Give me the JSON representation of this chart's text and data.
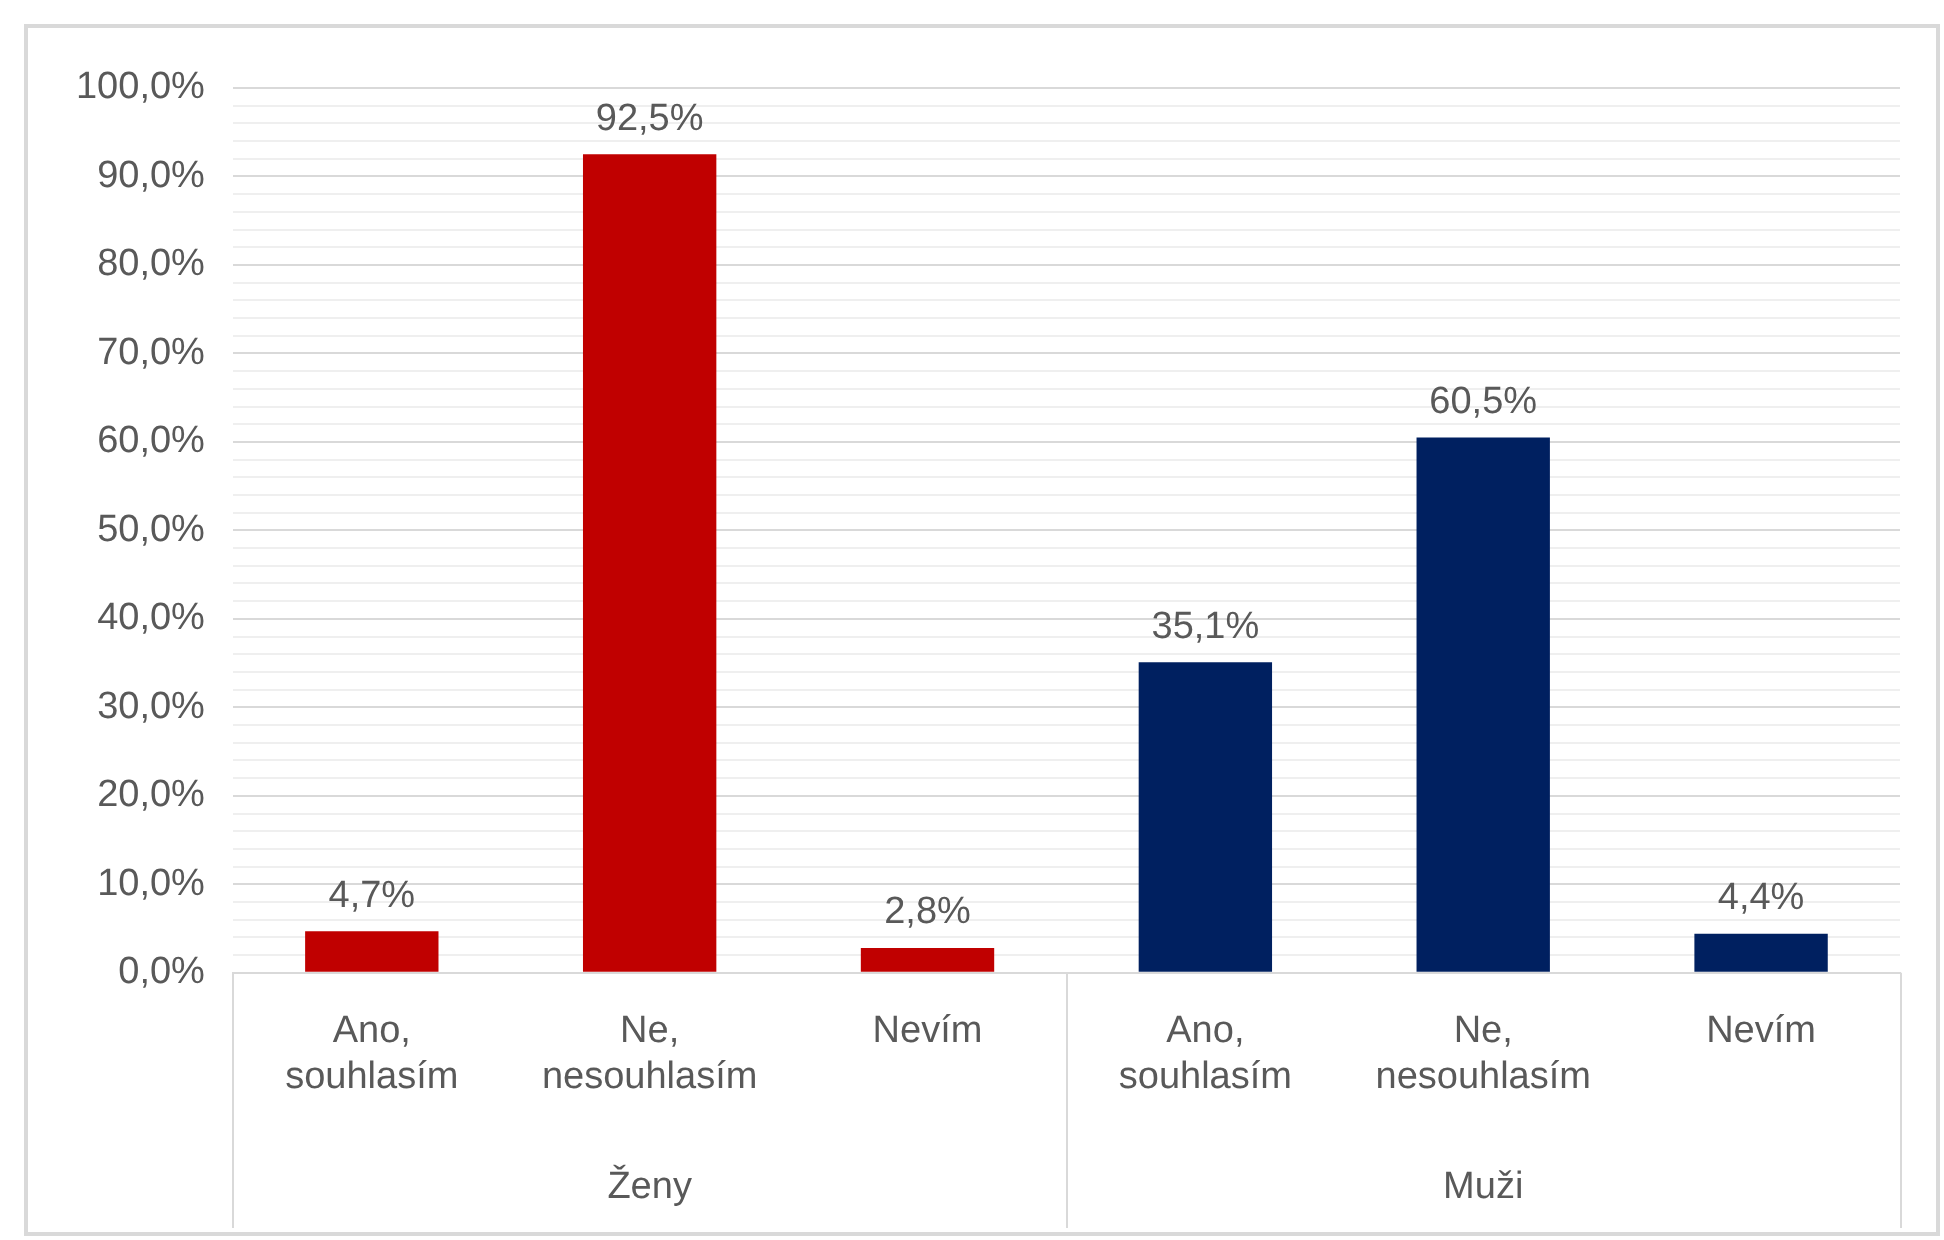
{
  "chart_data": {
    "type": "bar",
    "categories": [
      "Ano, souhlasím",
      "Ne, nesouhlasím",
      "Nevím",
      "Ano, souhlasím",
      "Ne, nesouhlasím",
      "Nevím"
    ],
    "series": [
      {
        "color": "#c00000",
        "values": [
          4.7,
          92.5,
          2.8,
          null,
          null,
          null
        ],
        "value_labels": [
          "4,7%",
          "92,5%",
          "2,8%",
          null,
          null,
          null
        ]
      },
      {
        "color": "#002060",
        "values": [
          null,
          null,
          null,
          35.1,
          60.5,
          4.4
        ],
        "value_labels": [
          null,
          null,
          null,
          "35,1%",
          "60,5%",
          "4,4%"
        ]
      }
    ],
    "ylim": [
      0,
      100
    ],
    "yticks": [
      {
        "value": 0,
        "label": "0,0%"
      },
      {
        "value": 2,
        "label": null
      },
      {
        "value": 4,
        "label": null
      },
      {
        "value": 6,
        "label": null
      },
      {
        "value": 8,
        "label": null
      },
      {
        "value": 10,
        "label": "10,0%"
      },
      {
        "value": 12,
        "label": null
      },
      {
        "value": 14,
        "label": null
      },
      {
        "value": 16,
        "label": null
      },
      {
        "value": 18,
        "label": null
      },
      {
        "value": 20,
        "label": "20,0%"
      },
      {
        "value": 22,
        "label": null
      },
      {
        "value": 24,
        "label": null
      },
      {
        "value": 26,
        "label": null
      },
      {
        "value": 28,
        "label": null
      },
      {
        "value": 30,
        "label": "30,0%"
      },
      {
        "value": 32,
        "label": null
      },
      {
        "value": 34,
        "label": null
      },
      {
        "value": 36,
        "label": null
      },
      {
        "value": 38,
        "label": null
      },
      {
        "value": 40,
        "label": "40,0%"
      },
      {
        "value": 42,
        "label": null
      },
      {
        "value": 44,
        "label": null
      },
      {
        "value": 46,
        "label": null
      },
      {
        "value": 48,
        "label": null
      },
      {
        "value": 50,
        "label": "50,0%"
      },
      {
        "value": 52,
        "label": null
      },
      {
        "value": 54,
        "label": null
      },
      {
        "value": 56,
        "label": null
      },
      {
        "value": 58,
        "label": null
      },
      {
        "value": 60,
        "label": "60,0%"
      },
      {
        "value": 62,
        "label": null
      },
      {
        "value": 64,
        "label": null
      },
      {
        "value": 66,
        "label": null
      },
      {
        "value": 68,
        "label": null
      },
      {
        "value": 70,
        "label": "70,0%"
      },
      {
        "value": 72,
        "label": null
      },
      {
        "value": 74,
        "label": null
      },
      {
        "value": 76,
        "label": null
      },
      {
        "value": 78,
        "label": null
      },
      {
        "value": 80,
        "label": "80,0%"
      },
      {
        "value": 82,
        "label": null
      },
      {
        "value": 84,
        "label": null
      },
      {
        "value": 86,
        "label": null
      },
      {
        "value": 88,
        "label": null
      },
      {
        "value": 90,
        "label": "90,0%"
      },
      {
        "value": 92,
        "label": null
      },
      {
        "value": 94,
        "label": null
      },
      {
        "value": 96,
        "label": null
      },
      {
        "value": 98,
        "label": null
      },
      {
        "value": 100,
        "label": "100,0%"
      }
    ],
    "annotations": [
      "Ženy",
      "Muži"
    ],
    "grid": "y",
    "legend": false
  }
}
